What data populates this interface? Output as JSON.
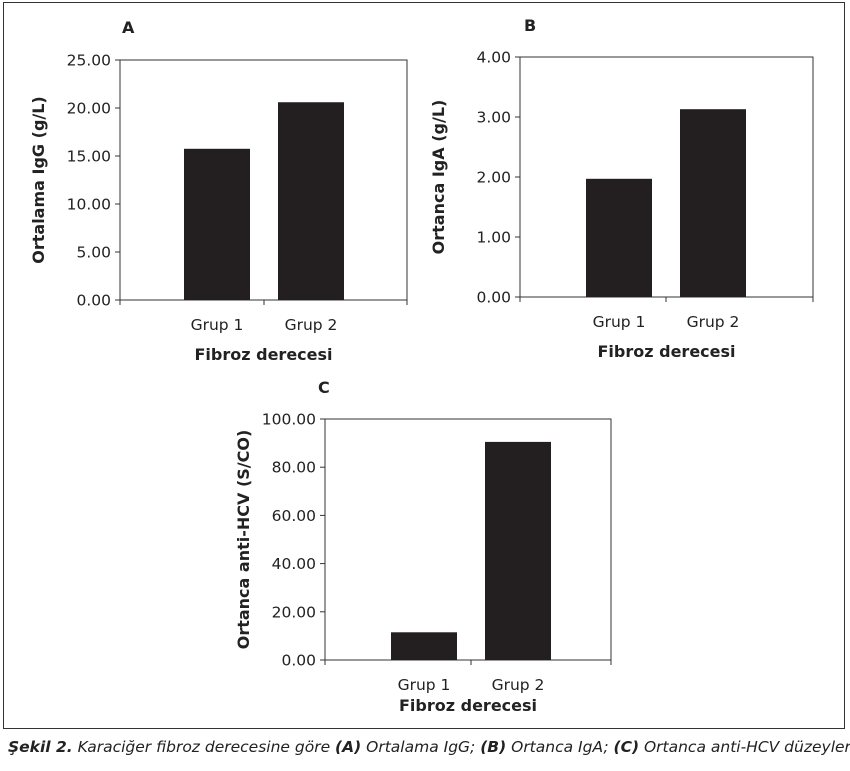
{
  "caption": {
    "label": "Şekil 2.",
    "intro": " Karaciğer fibroz derecesine göre ",
    "a_tag": "(A)",
    "a_text": " Ortalama IgG; ",
    "b_tag": "(B)",
    "b_text": " Ortanca IgA; ",
    "c_tag": "(C)",
    "c_text": " Ortanca anti-HCV düzeyleri."
  },
  "colors": {
    "bar": "#231f20",
    "axis": "#333333",
    "frame": "#333333"
  },
  "chart_data": [
    {
      "panel": "A",
      "type": "bar",
      "categories": [
        "Grup 1",
        "Grup 2"
      ],
      "values": [
        15.75,
        20.6
      ],
      "xlabel": "Fibroz derecesi",
      "ylabel": "Ortalama IgG (g/L)",
      "ylim": [
        0,
        25
      ],
      "yticks": [
        "0.00",
        "5.00",
        "10.00",
        "15.00",
        "20.00",
        "25.00"
      ],
      "grid": false,
      "legend": "none"
    },
    {
      "panel": "B",
      "type": "bar",
      "categories": [
        "Grup 1",
        "Grup 2"
      ],
      "values": [
        1.97,
        3.13
      ],
      "xlabel": "Fibroz derecesi",
      "ylabel": "Ortanca IgA (g/L)",
      "ylim": [
        0,
        4
      ],
      "yticks": [
        "0.00",
        "1.00",
        "2.00",
        "3.00",
        "4.00"
      ],
      "grid": false,
      "legend": "none"
    },
    {
      "panel": "C",
      "type": "bar",
      "categories": [
        "Grup 1",
        "Grup 2"
      ],
      "values": [
        11.5,
        90.5
      ],
      "xlabel": "Fibroz derecesi",
      "ylabel": "Ortanca anti-HCV (S/CO)",
      "ylim": [
        0,
        100
      ],
      "yticks": [
        "0.00",
        "20.00",
        "40.00",
        "60.00",
        "80.00",
        "100.00"
      ],
      "grid": false,
      "legend": "none"
    }
  ]
}
